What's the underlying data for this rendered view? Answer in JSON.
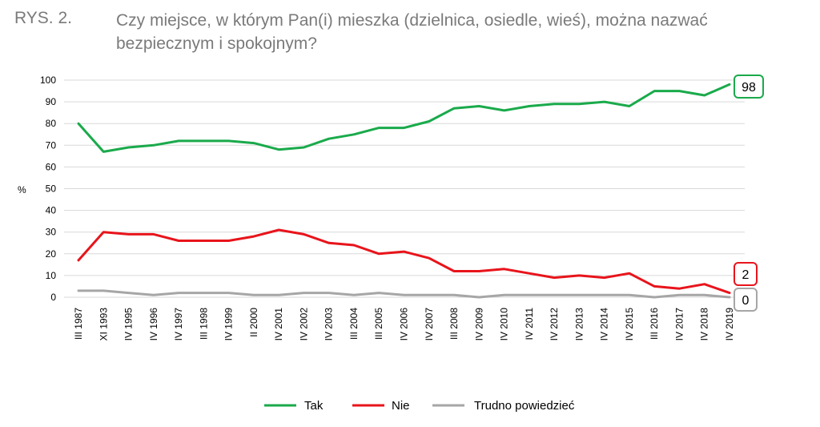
{
  "figure_label": "RYS. 2.",
  "chart_data": {
    "type": "line",
    "title": "Czy miejsce, w którym Pan(i) mieszka (dzielnica, osiedle, wieś), można nazwać bezpiecznym i spokojnym?",
    "ylabel": "%",
    "xlabel": "",
    "ylim": [
      0,
      100
    ],
    "yticks": [
      0,
      10,
      20,
      30,
      40,
      50,
      60,
      70,
      80,
      90,
      100
    ],
    "grid": true,
    "legend_position": "bottom",
    "categories": [
      "III 1987",
      "XI 1993",
      "IV 1995",
      "IV 1996",
      "IV 1997",
      "III 1998",
      "IV 1999",
      "II 2000",
      "IV 2001",
      "IV 2002",
      "IV 2003",
      "III 2004",
      "III 2005",
      "IV 2006",
      "IV 2007",
      "III 2008",
      "IV 2009",
      "IV 2010",
      "IV 2011",
      "IV 2012",
      "IV 2013",
      "IV 2014",
      "IV 2015",
      "III 2016",
      "IV 2017",
      "IV 2018",
      "IV 2019"
    ],
    "series": [
      {
        "name": "Tak",
        "color": "#1aaa4b",
        "values": [
          80,
          67,
          69,
          70,
          72,
          72,
          72,
          71,
          68,
          69,
          73,
          75,
          78,
          78,
          81,
          87,
          88,
          86,
          88,
          89,
          89,
          90,
          88,
          95,
          95,
          93,
          98
        ],
        "end_label": "98"
      },
      {
        "name": "Nie",
        "color": "#e8141b",
        "values": [
          17,
          30,
          29,
          29,
          26,
          26,
          26,
          28,
          31,
          29,
          25,
          24,
          20,
          21,
          18,
          12,
          12,
          13,
          11,
          9,
          10,
          9,
          11,
          5,
          4,
          6,
          2
        ],
        "end_label": "2"
      },
      {
        "name": "Trudno powiedzieć",
        "color": "#a6a6a6",
        "values": [
          3,
          3,
          2,
          1,
          2,
          2,
          2,
          1,
          1,
          2,
          2,
          1,
          2,
          1,
          1,
          1,
          0,
          1,
          1,
          1,
          1,
          1,
          1,
          0,
          1,
          1,
          0
        ],
        "end_label": "0"
      }
    ]
  }
}
